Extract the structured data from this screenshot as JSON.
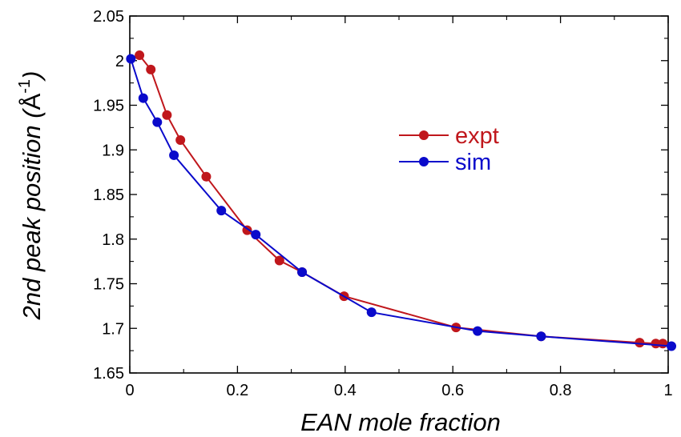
{
  "chart_data": {
    "type": "line",
    "title": "",
    "xlabel": "EAN mole fraction",
    "ylabel": {
      "prefix": "2nd peak position (",
      "unit": "Å",
      "exponent": "-1",
      "suffix": ")"
    },
    "xlim": [
      0,
      1
    ],
    "ylim": [
      1.65,
      2.05
    ],
    "xticks": [
      "0",
      "0.2",
      "0.4",
      "0.6",
      "0.8",
      "1"
    ],
    "xtick_values": [
      0,
      0.2,
      0.4,
      0.6,
      0.8,
      1.0
    ],
    "yticks": [
      "1.65",
      "1.7",
      "1.75",
      "1.8",
      "1.85",
      "1.9",
      "1.95",
      "2",
      "2.05"
    ],
    "ytick_values": [
      1.65,
      1.7,
      1.75,
      1.8,
      1.85,
      1.9,
      1.95,
      2.0,
      2.05
    ],
    "grid": false,
    "legend_position": "upper-right-center",
    "series": [
      {
        "name": "expt",
        "color": "#c0171c",
        "x": [
          0.018,
          0.039,
          0.069,
          0.094,
          0.142,
          0.218,
          0.278,
          0.32,
          0.398,
          0.606,
          0.764,
          0.947,
          0.977,
          0.99
        ],
        "y": [
          2.006,
          1.99,
          1.939,
          1.911,
          1.87,
          1.81,
          1.776,
          1.763,
          1.736,
          1.701,
          1.691,
          1.684,
          1.683,
          1.683
        ]
      },
      {
        "name": "sim",
        "color": "#0a0acb",
        "x": [
          0.002,
          0.025,
          0.051,
          0.082,
          0.17,
          0.234,
          0.32,
          0.449,
          0.646,
          0.764,
          1.006
        ],
        "y": [
          2.002,
          1.958,
          1.931,
          1.894,
          1.832,
          1.805,
          1.763,
          1.718,
          1.697,
          1.691,
          1.68
        ]
      }
    ]
  }
}
